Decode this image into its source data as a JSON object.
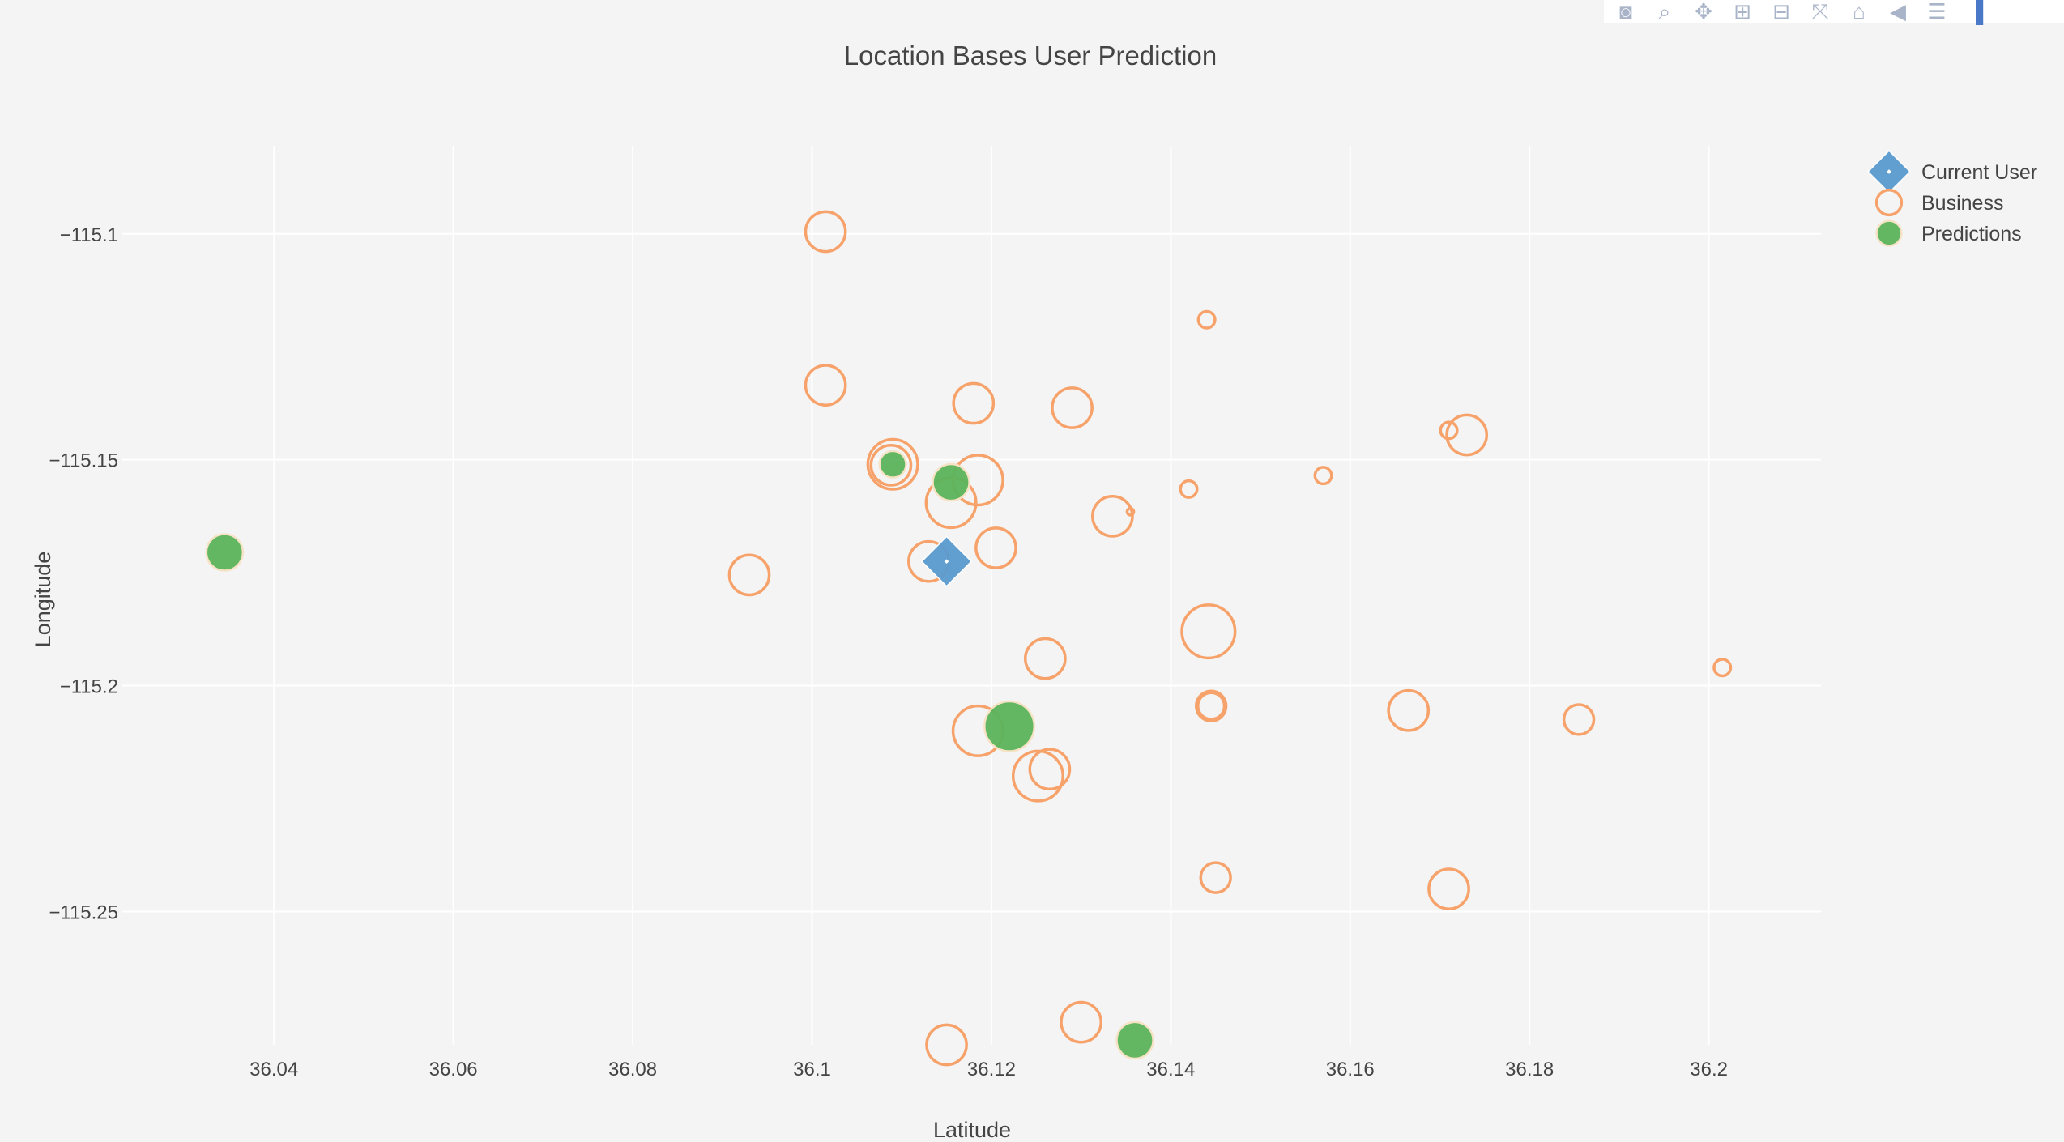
{
  "modebar": {
    "buttons": [
      {
        "name": "camera-icon",
        "glyph": "◙"
      },
      {
        "name": "zoom-icon",
        "glyph": "⌕"
      },
      {
        "name": "pan-icon",
        "glyph": "✥"
      },
      {
        "name": "zoom-in-icon",
        "glyph": "⊞"
      },
      {
        "name": "zoom-out-icon",
        "glyph": "⊟"
      },
      {
        "name": "autoscale-icon",
        "glyph": "⤧"
      },
      {
        "name": "home-icon",
        "glyph": "⌂"
      },
      {
        "name": "hover-closest-icon",
        "glyph": "◀"
      },
      {
        "name": "hover-compare-icon",
        "glyph": "☰"
      },
      {
        "name": "plotly-logo-icon",
        "glyph": "▐"
      }
    ]
  },
  "chart_data": {
    "type": "scatter",
    "title": "Location Bases User Prediction",
    "xlabel": "Latitude",
    "ylabel": "Longitude",
    "xlim": [
      36.023,
      36.2125
    ],
    "ylim": [
      -115.2795,
      -115.0805
    ],
    "xticks": [
      {
        "value": 36.04,
        "label": "36.04"
      },
      {
        "value": 36.06,
        "label": "36.06"
      },
      {
        "value": 36.08,
        "label": "36.08"
      },
      {
        "value": 36.1,
        "label": "36.1"
      },
      {
        "value": 36.12,
        "label": "36.12"
      },
      {
        "value": 36.14,
        "label": "36.14"
      },
      {
        "value": 36.16,
        "label": "36.16"
      },
      {
        "value": 36.18,
        "label": "36.18"
      },
      {
        "value": 36.2,
        "label": "36.2"
      }
    ],
    "yticks": [
      {
        "value": -115.1,
        "label": "−115.1"
      },
      {
        "value": -115.15,
        "label": "−115.15"
      },
      {
        "value": -115.2,
        "label": "−115.2"
      },
      {
        "value": -115.25,
        "label": "−115.25"
      }
    ],
    "grid": true,
    "legend_position": "top-right",
    "colors": {
      "current_user": "#5b9bd0",
      "business": "#f6a26a",
      "predictions": "#5cb45c",
      "grid": "#ffffff",
      "background": "#f4f4f4"
    },
    "series": [
      {
        "name": "Current User",
        "marker": "diamond",
        "points": [
          {
            "x": 36.115,
            "y": -115.1725,
            "size": 13
          }
        ]
      },
      {
        "name": "Business",
        "marker": "circle-open",
        "points": [
          {
            "x": 36.1015,
            "y": -115.0995,
            "size": 12
          },
          {
            "x": 36.144,
            "y": -115.119,
            "size": 5
          },
          {
            "x": 36.1015,
            "y": -115.1335,
            "size": 12
          },
          {
            "x": 36.118,
            "y": -115.1375,
            "size": 12
          },
          {
            "x": 36.129,
            "y": -115.1385,
            "size": 12
          },
          {
            "x": 36.173,
            "y": -115.1445,
            "size": 12
          },
          {
            "x": 36.171,
            "y": -115.1435,
            "size": 5
          },
          {
            "x": 36.109,
            "y": -115.151,
            "size": 15
          },
          {
            "x": 36.1088,
            "y": -115.1512,
            "size": 12
          },
          {
            "x": 36.1185,
            "y": -115.1545,
            "size": 15
          },
          {
            "x": 36.157,
            "y": -115.1535,
            "size": 5
          },
          {
            "x": 36.1155,
            "y": -115.1595,
            "size": 15
          },
          {
            "x": 36.142,
            "y": -115.1565,
            "size": 5
          },
          {
            "x": 36.1335,
            "y": -115.1625,
            "size": 12
          },
          {
            "x": 36.1355,
            "y": -115.1615,
            "size": 2
          },
          {
            "x": 36.1205,
            "y": -115.1695,
            "size": 12
          },
          {
            "x": 36.093,
            "y": -115.1755,
            "size": 12
          },
          {
            "x": 36.113,
            "y": -115.1725,
            "size": 12
          },
          {
            "x": 36.1442,
            "y": -115.188,
            "size": 16
          },
          {
            "x": 36.126,
            "y": -115.194,
            "size": 12
          },
          {
            "x": 36.2015,
            "y": -115.196,
            "size": 5
          },
          {
            "x": 36.1445,
            "y": -115.2045,
            "size": 9
          },
          {
            "x": 36.1445,
            "y": -115.2045,
            "size": 8
          },
          {
            "x": 36.1665,
            "y": -115.2055,
            "size": 12
          },
          {
            "x": 36.1855,
            "y": -115.2075,
            "size": 9
          },
          {
            "x": 36.1185,
            "y": -115.21,
            "size": 15
          },
          {
            "x": 36.1265,
            "y": -115.2185,
            "size": 12
          },
          {
            "x": 36.1252,
            "y": -115.22,
            "size": 15
          },
          {
            "x": 36.145,
            "y": -115.2425,
            "size": 9
          },
          {
            "x": 36.171,
            "y": -115.245,
            "size": 12
          },
          {
            "x": 36.13,
            "y": -115.2745,
            "size": 12
          },
          {
            "x": 36.115,
            "y": -115.2795,
            "size": 12
          }
        ]
      },
      {
        "name": "Predictions",
        "marker": "circle",
        "points": [
          {
            "x": 36.0345,
            "y": -115.1705,
            "size": 11
          },
          {
            "x": 36.109,
            "y": -115.151,
            "size": 8
          },
          {
            "x": 36.1155,
            "y": -115.155,
            "size": 11
          },
          {
            "x": 36.122,
            "y": -115.209,
            "size": 15
          },
          {
            "x": 36.136,
            "y": -115.2785,
            "size": 11
          }
        ]
      }
    ]
  }
}
